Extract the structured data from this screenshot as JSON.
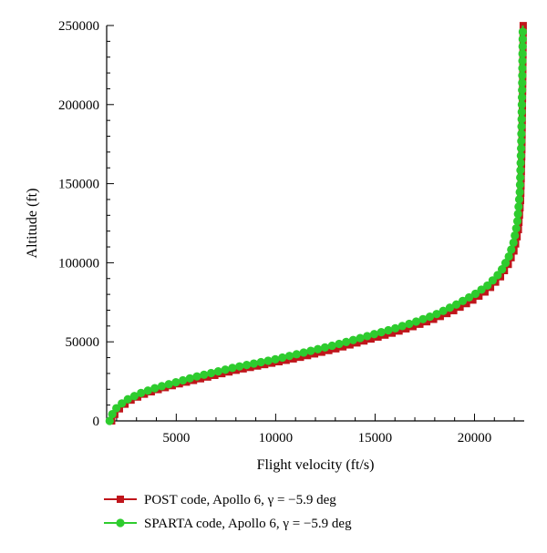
{
  "chart_data": {
    "type": "line",
    "xlabel": "Flight velocity (ft/s)",
    "ylabel": "Altitude (ft)",
    "xlim": [
      1500,
      22500
    ],
    "ylim": [
      0,
      250000
    ],
    "x_ticks": [
      5000,
      10000,
      15000,
      20000
    ],
    "y_ticks": [
      0,
      50000,
      100000,
      150000,
      200000,
      250000
    ],
    "x_tick_labels": [
      "5000",
      "10000",
      "15000",
      "20000"
    ],
    "y_tick_labels": [
      "0",
      "50000",
      "100000",
      "150000",
      "200000",
      "250000"
    ],
    "grid": false,
    "legend_position": "bottom",
    "series": [
      {
        "name": "POST code, Apollo 6, γ = −5.9 deg",
        "color": "#c0151b",
        "marker": "square",
        "points": [
          [
            1750,
            0
          ],
          [
            1850,
            3000
          ],
          [
            2000,
            6000
          ],
          [
            2300,
            9500
          ],
          [
            2700,
            13000
          ],
          [
            3300,
            16500
          ],
          [
            4000,
            19500
          ],
          [
            5000,
            23000
          ],
          [
            6000,
            26000
          ],
          [
            7000,
            29000
          ],
          [
            8000,
            32000
          ],
          [
            9000,
            34500
          ],
          [
            10000,
            37000
          ],
          [
            11000,
            39500
          ],
          [
            12000,
            42500
          ],
          [
            13000,
            45500
          ],
          [
            14000,
            49000
          ],
          [
            15000,
            52500
          ],
          [
            16000,
            56000
          ],
          [
            17000,
            60000
          ],
          [
            18000,
            64500
          ],
          [
            19000,
            70000
          ],
          [
            20000,
            77000
          ],
          [
            20700,
            83000
          ],
          [
            21300,
            91000
          ],
          [
            21700,
            99000
          ],
          [
            22000,
            108000
          ],
          [
            22200,
            120000
          ],
          [
            22320,
            140000
          ],
          [
            22380,
            170000
          ],
          [
            22420,
            210000
          ],
          [
            22450,
            250000
          ]
        ]
      },
      {
        "name": "SPARTA code, Apollo 6, γ = −5.9 deg",
        "color": "#2ecc2e",
        "marker": "circle",
        "points": [
          [
            1650,
            0
          ],
          [
            1750,
            3500
          ],
          [
            1900,
            7000
          ],
          [
            2200,
            10500
          ],
          [
            2600,
            14000
          ],
          [
            3200,
            17500
          ],
          [
            4000,
            21000
          ],
          [
            5000,
            24500
          ],
          [
            6000,
            28000
          ],
          [
            7000,
            31000
          ],
          [
            8000,
            34000
          ],
          [
            9000,
            36500
          ],
          [
            10000,
            39000
          ],
          [
            11000,
            42000
          ],
          [
            12000,
            45000
          ],
          [
            13000,
            48000
          ],
          [
            14000,
            51500
          ],
          [
            15000,
            55000
          ],
          [
            16000,
            58500
          ],
          [
            17000,
            62500
          ],
          [
            18000,
            67000
          ],
          [
            19000,
            73000
          ],
          [
            20000,
            80000
          ],
          [
            20700,
            86000
          ],
          [
            21300,
            94000
          ],
          [
            21700,
            103000
          ],
          [
            21950,
            112000
          ],
          [
            22150,
            125000
          ],
          [
            22280,
            145000
          ],
          [
            22350,
            175000
          ],
          [
            22400,
            215000
          ],
          [
            22430,
            250000
          ]
        ]
      }
    ]
  }
}
